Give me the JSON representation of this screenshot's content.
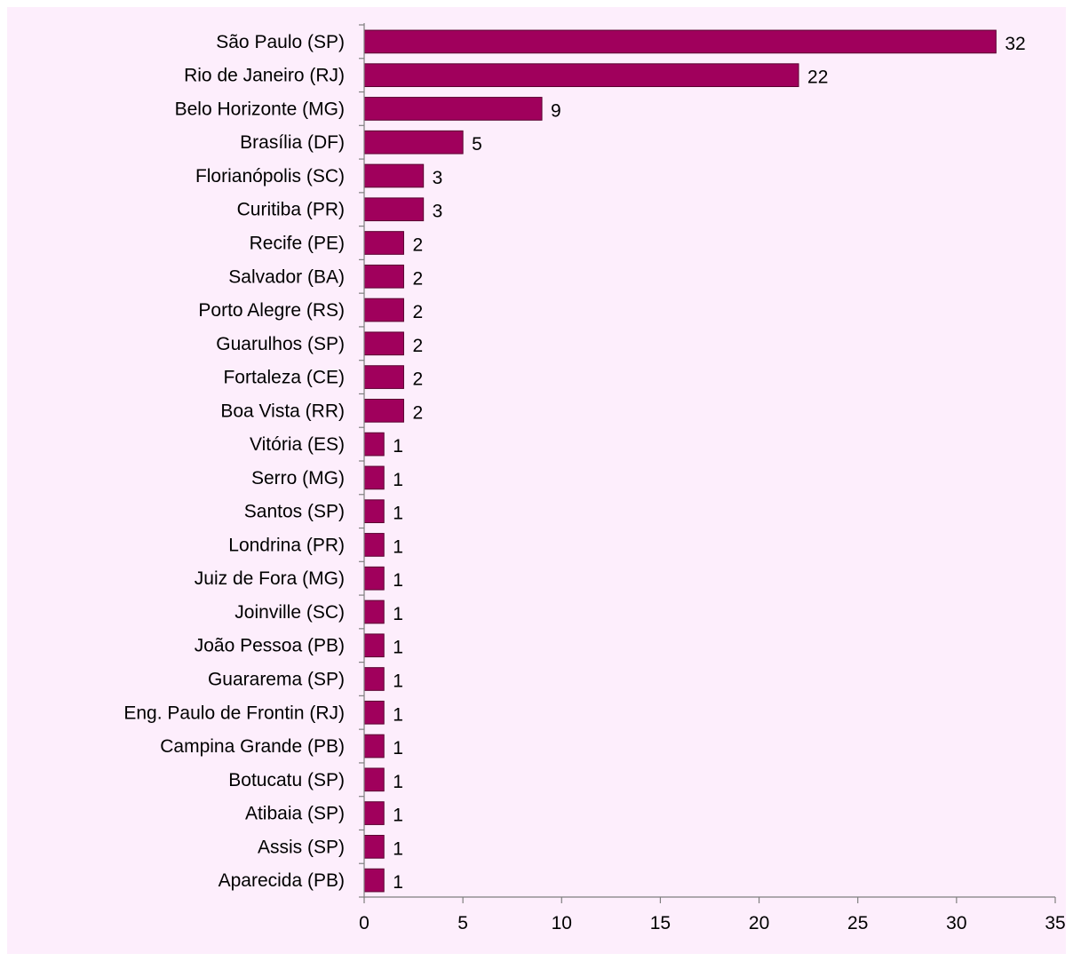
{
  "colors": {
    "background": "#fdeefc",
    "bar": "#a0005c",
    "bar_stroke": "#5a0030",
    "axis": "#7f7f7f"
  },
  "chart_data": {
    "type": "bar",
    "orientation": "horizontal",
    "title": "",
    "xlabel": "",
    "ylabel": "",
    "xlim": [
      0,
      35
    ],
    "xticks": [
      0,
      5,
      10,
      15,
      20,
      25,
      30,
      35
    ],
    "grid": false,
    "legend": "none",
    "categories": [
      "São Paulo (SP)",
      "Rio de Janeiro (RJ)",
      "Belo Horizonte (MG)",
      "Brasília (DF)",
      "Florianópolis (SC)",
      "Curitiba (PR)",
      "Recife (PE)",
      "Salvador (BA)",
      "Porto Alegre (RS)",
      "Guarulhos (SP)",
      "Fortaleza (CE)",
      "Boa Vista (RR)",
      "Vitória (ES)",
      "Serro (MG)",
      "Santos (SP)",
      "Londrina (PR)",
      "Juiz de Fora (MG)",
      "Joinville (SC)",
      "João Pessoa (PB)",
      "Guararema (SP)",
      "Eng. Paulo de Frontin (RJ)",
      "Campina Grande (PB)",
      "Botucatu (SP)",
      "Atibaia (SP)",
      "Assis (SP)",
      "Aparecida (PB)"
    ],
    "values": [
      32,
      22,
      9,
      5,
      3,
      3,
      2,
      2,
      2,
      2,
      2,
      2,
      1,
      1,
      1,
      1,
      1,
      1,
      1,
      1,
      1,
      1,
      1,
      1,
      1,
      1
    ]
  }
}
